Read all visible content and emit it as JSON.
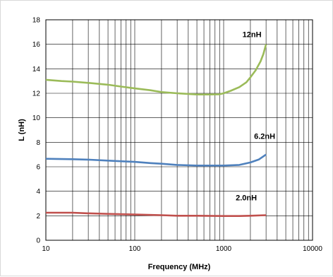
{
  "chart_data": {
    "type": "line",
    "title": "",
    "xlabel": "Frequency (MHz)",
    "ylabel": "L (nH)",
    "x_scale": "log",
    "xlim": [
      10,
      10000
    ],
    "ylim": [
      0,
      18
    ],
    "x_ticks": [
      "10",
      "100",
      "1000",
      "10000"
    ],
    "y_ticks": [
      "0",
      "2",
      "4",
      "6",
      "8",
      "10",
      "12",
      "14",
      "16",
      "18"
    ],
    "grid": true,
    "series": [
      {
        "name": "12nH",
        "color": "#9bbb59",
        "x": [
          10,
          15,
          20,
          30,
          50,
          70,
          100,
          150,
          200,
          300,
          400,
          500,
          700,
          900,
          1000,
          1200,
          1500,
          1800,
          2000,
          2300,
          2600,
          2800,
          3000
        ],
        "y": [
          13.1,
          13.0,
          12.95,
          12.85,
          12.7,
          12.55,
          12.4,
          12.25,
          12.1,
          12.0,
          11.95,
          11.9,
          11.9,
          11.92,
          12.0,
          12.2,
          12.5,
          12.9,
          13.3,
          13.9,
          14.6,
          15.2,
          16.0
        ]
      },
      {
        "name": "6.2nH",
        "color": "#4f81bd",
        "x": [
          10,
          20,
          30,
          50,
          70,
          100,
          150,
          200,
          300,
          500,
          700,
          1000,
          1500,
          2000,
          2500,
          3000
        ],
        "y": [
          6.65,
          6.62,
          6.58,
          6.5,
          6.45,
          6.4,
          6.3,
          6.25,
          6.15,
          6.1,
          6.1,
          6.1,
          6.15,
          6.35,
          6.6,
          7.0
        ]
      },
      {
        "name": "2.0nH",
        "color": "#c0504d",
        "x": [
          10,
          20,
          30,
          50,
          100,
          200,
          300,
          500,
          1000,
          1500,
          2000,
          3000
        ],
        "y": [
          2.25,
          2.25,
          2.2,
          2.15,
          2.1,
          2.05,
          2.0,
          2.0,
          1.98,
          1.98,
          2.0,
          2.05
        ]
      }
    ]
  }
}
